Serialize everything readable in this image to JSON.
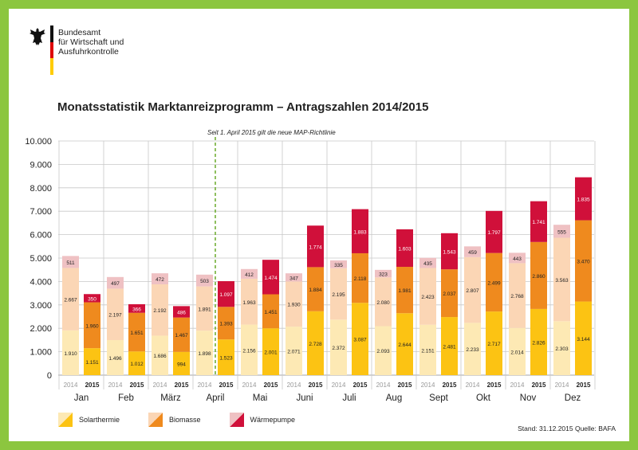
{
  "header": {
    "org_line1": "Bundesamt",
    "org_line2": "für Wirtschaft und",
    "org_line3": "Ausfuhrkontrolle",
    "title": "Monatsstatistik Marktanreizprogramm – Antragszahlen 2014/2015"
  },
  "footer": {
    "stand": "Stand: 31.12.2015  Quelle: BAFA"
  },
  "colors": {
    "border": "#8cc63f",
    "solar_2014": "#fde9b4",
    "solar_2015": "#fcc313",
    "bio_2014": "#fbd6b5",
    "bio_2015": "#ef8a1e",
    "wp_2014": "#efc1c3",
    "wp_2015": "#d0103a",
    "annotation_line": "#6aaa2a"
  },
  "chart_data": {
    "type": "bar",
    "stacked": true,
    "title": "Monatsstatistik Marktanreizprogramm – Antragszahlen 2014/2015",
    "categories": [
      "Jan",
      "Feb",
      "März",
      "April",
      "Mai",
      "Juni",
      "Juli",
      "Aug",
      "Sept",
      "Okt",
      "Nov",
      "Dez"
    ],
    "years": [
      "2014",
      "2015"
    ],
    "ylim": [
      0,
      10000
    ],
    "yticks": [
      "0",
      "1.000",
      "2.000",
      "3.000",
      "4.000",
      "5.000",
      "6.000",
      "7.000",
      "8.000",
      "9.000",
      "10.000"
    ],
    "grid": true,
    "annotation": "Seit 1. April 2015 gilt die neue MAP-Richtlinie",
    "series": [
      {
        "name": "Solarthermie",
        "values_2014": [
          1910,
          1496,
          1686,
          1898,
          2156,
          2071,
          2372,
          2093,
          2151,
          2233,
          2014,
          2303
        ],
        "values_2015": [
          1151,
          1012,
          994,
          1523,
          2001,
          2728,
          3087,
          2644,
          2481,
          2717,
          2826,
          3144
        ]
      },
      {
        "name": "Biomasse",
        "values_2014": [
          2667,
          2197,
          2192,
          1891,
          1963,
          1930,
          2195,
          2080,
          2423,
          2807,
          2768,
          3563
        ],
        "values_2015": [
          1960,
          1651,
          1467,
          1393,
          1451,
          1884,
          2118,
          1981,
          2037,
          2499,
          2860,
          3470
        ]
      },
      {
        "name": "Wärmepumpe",
        "values_2014": [
          511,
          497,
          472,
          503,
          412,
          347,
          335,
          323,
          435,
          459,
          443,
          555
        ],
        "values_2015": [
          350,
          366,
          486,
          1097,
          1474,
          1774,
          1883,
          1603,
          1543,
          1797,
          1741,
          1835
        ]
      }
    ],
    "labels_2014": [
      [
        "1.910",
        "2.667",
        "511"
      ],
      [
        "1.496",
        "2.197",
        "497"
      ],
      [
        "1.686",
        "2.192",
        "472"
      ],
      [
        "1.898",
        "1.891",
        "503"
      ],
      [
        "2.156",
        "1.963",
        "412"
      ],
      [
        "2.071",
        "1.930",
        "347"
      ],
      [
        "2.372",
        "2.195",
        "335"
      ],
      [
        "2.093",
        "2.080",
        "323"
      ],
      [
        "2.151",
        "2.423",
        "435"
      ],
      [
        "2.233",
        "2.807",
        "459"
      ],
      [
        "2.014",
        "2.768",
        "443"
      ],
      [
        "2.303",
        "3.563",
        "555"
      ]
    ],
    "labels_2015": [
      [
        "1.151",
        "1.960",
        "350"
      ],
      [
        "1.012",
        "1.651",
        "366"
      ],
      [
        "994",
        "1.467",
        "486"
      ],
      [
        "1.523",
        "1.393",
        "1.097"
      ],
      [
        "2.001",
        "1.451",
        "1.474"
      ],
      [
        "2.728",
        "1.884",
        "1.774"
      ],
      [
        "3.087",
        "2.118",
        "1.883"
      ],
      [
        "2.644",
        "1.981",
        "1.603"
      ],
      [
        "2.481",
        "2.037",
        "1.543"
      ],
      [
        "2.717",
        "2.499",
        "1.797"
      ],
      [
        "2.826",
        "2.860",
        "1.741"
      ],
      [
        "3.144",
        "3.470",
        "1.835"
      ]
    ]
  }
}
